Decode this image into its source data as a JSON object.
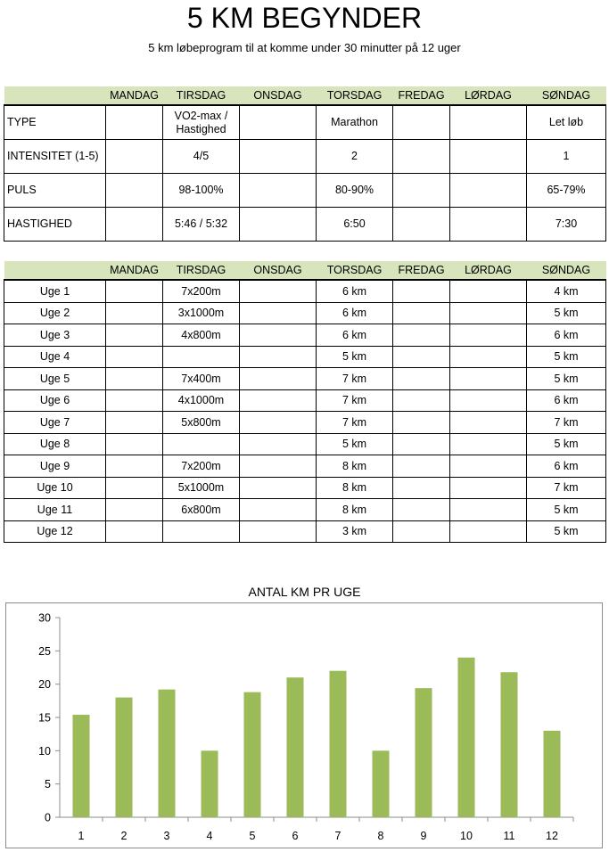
{
  "header": {
    "title": "5 KM BEGYNDER",
    "subtitle": "5 km løbeprogram til at komme under 30 minutter på 12 uger"
  },
  "days": [
    "MANDAG",
    "TIRSDAG",
    "ONSDAG",
    "TORSDAG",
    "FREDAG",
    "LØRDAG",
    "SØNDAG"
  ],
  "schedule": {
    "rows": [
      {
        "label": "TYPE",
        "cells": [
          "",
          "VO2-max / Hastighed",
          "",
          "Marathon",
          "",
          "",
          "Let løb"
        ]
      },
      {
        "label": "INTENSITET (1-5)",
        "cells": [
          "",
          "4/5",
          "",
          "2",
          "",
          "",
          "1"
        ]
      },
      {
        "label": "PULS",
        "cells": [
          "",
          "98-100%",
          "",
          "80-90%",
          "",
          "",
          "65-79%"
        ]
      },
      {
        "label": "HASTIGHED",
        "cells": [
          "",
          "5:46 / 5:32",
          "",
          "6:50",
          "",
          "",
          "7:30"
        ]
      }
    ]
  },
  "weeks": {
    "rows": [
      {
        "label": "Uge 1",
        "cells": [
          "",
          "7x200m",
          "",
          "6 km",
          "",
          "",
          "4 km"
        ]
      },
      {
        "label": "Uge 2",
        "cells": [
          "",
          "3x1000m",
          "",
          "6 km",
          "",
          "",
          "5 km"
        ]
      },
      {
        "label": "Uge 3",
        "cells": [
          "",
          "4x800m",
          "",
          "6 km",
          "",
          "",
          "6 km"
        ]
      },
      {
        "label": "Uge 4",
        "cells": [
          "",
          "",
          "",
          "5 km",
          "",
          "",
          "5 km"
        ]
      },
      {
        "label": "Uge 5",
        "cells": [
          "",
          "7x400m",
          "",
          "7 km",
          "",
          "",
          "5 km"
        ]
      },
      {
        "label": "Uge 6",
        "cells": [
          "",
          "4x1000m",
          "",
          "7 km",
          "",
          "",
          "6 km"
        ]
      },
      {
        "label": "Uge 7",
        "cells": [
          "",
          "5x800m",
          "",
          "7 km",
          "",
          "",
          "7 km"
        ]
      },
      {
        "label": "Uge 8",
        "cells": [
          "",
          "",
          "",
          "5 km",
          "",
          "",
          "5 km"
        ]
      },
      {
        "label": "Uge 9",
        "cells": [
          "",
          "7x200m",
          "",
          "8 km",
          "",
          "",
          "6 km"
        ]
      },
      {
        "label": "Uge 10",
        "cells": [
          "",
          "5x1000m",
          "",
          "8 km",
          "",
          "",
          "7 km"
        ]
      },
      {
        "label": "Uge 11",
        "cells": [
          "",
          "6x800m",
          "",
          "8 km",
          "",
          "",
          "5 km"
        ]
      },
      {
        "label": "Uge 12",
        "cells": [
          "",
          "",
          "",
          "3 km",
          "",
          "",
          "5 km"
        ]
      }
    ]
  },
  "chart_data": {
    "type": "bar",
    "title": "ANTAL KM PR UGE",
    "categories": [
      "1",
      "2",
      "3",
      "4",
      "5",
      "6",
      "7",
      "8",
      "9",
      "10",
      "11",
      "12"
    ],
    "values": [
      15.4,
      18,
      19.2,
      10,
      18.8,
      21,
      22,
      10,
      19.4,
      24,
      21.8,
      13
    ],
    "ylim": [
      0,
      30
    ],
    "yticks": [
      0,
      5,
      10,
      15,
      20,
      25,
      30
    ],
    "bar_color": "#9bbb59",
    "grid": false,
    "legend": "none"
  },
  "colors": {
    "header_band": "#d8e4bc",
    "bar": "#9bbb59"
  }
}
